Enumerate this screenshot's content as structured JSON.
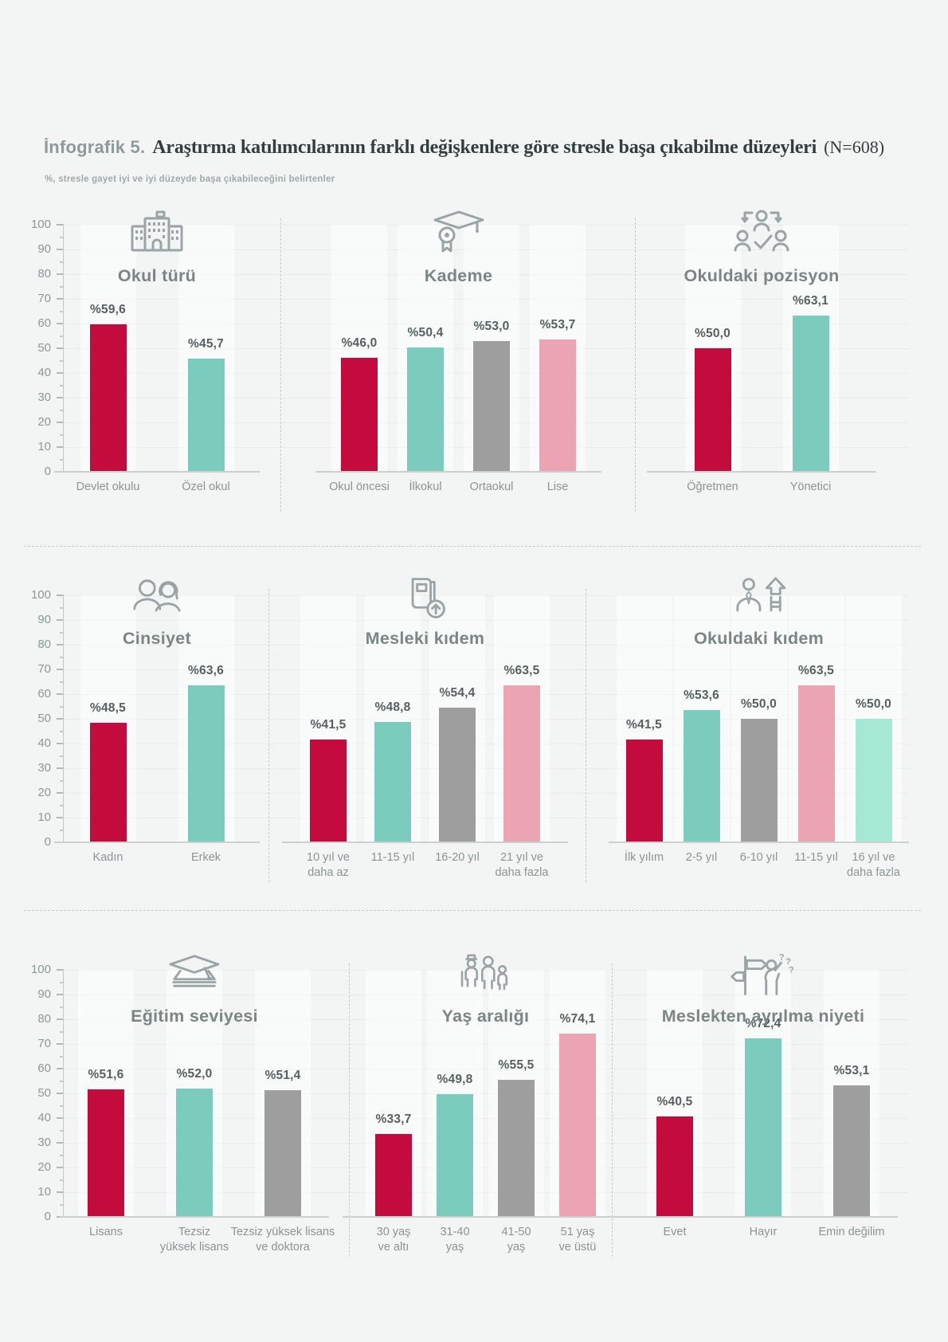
{
  "page": {
    "title_prefix": "İnfografik 5.",
    "title": "Araştırma katılımcılarının farklı değişkenlere göre stresle başa çıkabilme düzeyleri",
    "title_note": "(N=608)",
    "subtitle": "%, stresle gayet iyi ve iyi düzeyde başa çıkabileceğini belirtenler"
  },
  "colors": {
    "crimson": "#c30b3e",
    "teal": "#7cccbe",
    "gray": "#9e9e9e",
    "pink": "#eca4b2",
    "mint": "#a5e8d6",
    "background": "#f3f5f4",
    "icon_stroke": "#9aa3a5",
    "grid_line": "#e7eae9",
    "axis_line": "#c2c9c8",
    "muted_text": "#8a9496",
    "value_text": "#566061",
    "chart_title_text": "#7b8586",
    "page_title_text": "#323d3f"
  },
  "axis": {
    "min": 0,
    "max": 100,
    "ticks": [
      0,
      10,
      20,
      30,
      40,
      50,
      60,
      70,
      80,
      90,
      100
    ]
  },
  "chart_data": [
    {
      "id": "okul-turu",
      "type": "bar",
      "title": "Okul türü",
      "icon": "school-building-icon",
      "categories": [
        "Devlet okulu",
        "Özel okul"
      ],
      "values": [
        59.6,
        45.7
      ],
      "value_labels": [
        "%59,6",
        "%45,7"
      ],
      "bar_colors": [
        "crimson",
        "teal"
      ],
      "ylim": [
        0,
        100
      ]
    },
    {
      "id": "kademe",
      "type": "bar",
      "title": "Kademe",
      "icon": "graduation-medal-icon",
      "categories": [
        "Okul öncesi",
        "İlkokul",
        "Ortaokul",
        "Lise"
      ],
      "values": [
        46.0,
        50.4,
        53.0,
        53.7
      ],
      "value_labels": [
        "%46,0",
        "%50,4",
        "%53,0",
        "%53,7"
      ],
      "bar_colors": [
        "crimson",
        "teal",
        "gray",
        "pink"
      ],
      "ylim": [
        0,
        100
      ]
    },
    {
      "id": "okuldaki-pozisyon",
      "type": "bar",
      "title": "Okuldaki pozisyon",
      "icon": "people-network-icon",
      "categories": [
        "Öğretmen",
        "Yönetici"
      ],
      "values": [
        50.0,
        63.1
      ],
      "value_labels": [
        "%50,0",
        "%63,1"
      ],
      "bar_colors": [
        "crimson",
        "teal"
      ],
      "ylim": [
        0,
        100
      ]
    },
    {
      "id": "cinsiyet",
      "type": "bar",
      "title": "Cinsiyet",
      "icon": "man-woman-icon",
      "categories": [
        "Kadın",
        "Erkek"
      ],
      "values": [
        48.5,
        63.6
      ],
      "value_labels": [
        "%48,5",
        "%63,6"
      ],
      "bar_colors": [
        "crimson",
        "teal"
      ],
      "ylim": [
        0,
        100
      ]
    },
    {
      "id": "mesleki-kidem",
      "type": "bar",
      "title": "Mesleki kıdem",
      "icon": "book-arrow-icon",
      "categories": [
        "10 yıl ve\ndaha az",
        "11-15 yıl",
        "16-20 yıl",
        "21 yıl ve\ndaha fazla"
      ],
      "values": [
        41.5,
        48.8,
        54.4,
        63.5
      ],
      "value_labels": [
        "%41,5",
        "%48,8",
        "%54,4",
        "%63,5"
      ],
      "bar_colors": [
        "crimson",
        "teal",
        "gray",
        "pink"
      ],
      "ylim": [
        0,
        100
      ]
    },
    {
      "id": "okuldaki-kidem",
      "type": "bar",
      "title": "Okuldaki kıdem",
      "icon": "person-growth-icon",
      "categories": [
        "İlk yılım",
        "2-5 yıl",
        "6-10 yıl",
        "11-15 yıl",
        "16 yıl ve\ndaha fazla"
      ],
      "values": [
        41.5,
        53.6,
        50.0,
        63.5,
        50.0
      ],
      "value_labels": [
        "%41,5",
        "%53,6",
        "%50,0",
        "%63,5",
        "%50,0"
      ],
      "bar_colors": [
        "crimson",
        "teal",
        "gray",
        "pink",
        "mint"
      ],
      "ylim": [
        0,
        100
      ]
    },
    {
      "id": "egitim-seviyesi",
      "type": "bar",
      "title": "Eğitim seviyesi",
      "icon": "mortarboard-icon",
      "categories": [
        "Lisans",
        "Tezsiz\nyüksek lisans",
        "Tezsiz yüksek lisans\nve doktora"
      ],
      "values": [
        51.6,
        52.0,
        51.4
      ],
      "value_labels": [
        "%51,6",
        "%52,0",
        "%51,4"
      ],
      "bar_colors": [
        "crimson",
        "teal",
        "gray"
      ],
      "ylim": [
        0,
        100
      ]
    },
    {
      "id": "yas-araligi",
      "type": "bar",
      "title": "Yaş aralığı",
      "icon": "generations-icon",
      "categories": [
        "30 yaş\nve altı",
        "31-40\nyaş",
        "41-50\nyaş",
        "51 yaş\nve üstü"
      ],
      "values": [
        33.7,
        49.8,
        55.5,
        74.1
      ],
      "value_labels": [
        "%33,7",
        "%49,8",
        "%55,5",
        "%74,1"
      ],
      "bar_colors": [
        "crimson",
        "teal",
        "gray",
        "pink"
      ],
      "ylim": [
        0,
        100
      ]
    },
    {
      "id": "meslekten-ayrilma-niyeti",
      "type": "bar",
      "title": "Meslekten ayrılma niyeti",
      "icon": "crossroads-person-icon",
      "categories": [
        "Evet",
        "Hayır",
        "Emin değilim"
      ],
      "values": [
        40.5,
        72.4,
        53.1
      ],
      "value_labels": [
        "%40,5",
        "%72,4",
        "%53,1"
      ],
      "bar_colors": [
        "crimson",
        "teal",
        "gray"
      ],
      "ylim": [
        0,
        100
      ]
    }
  ]
}
